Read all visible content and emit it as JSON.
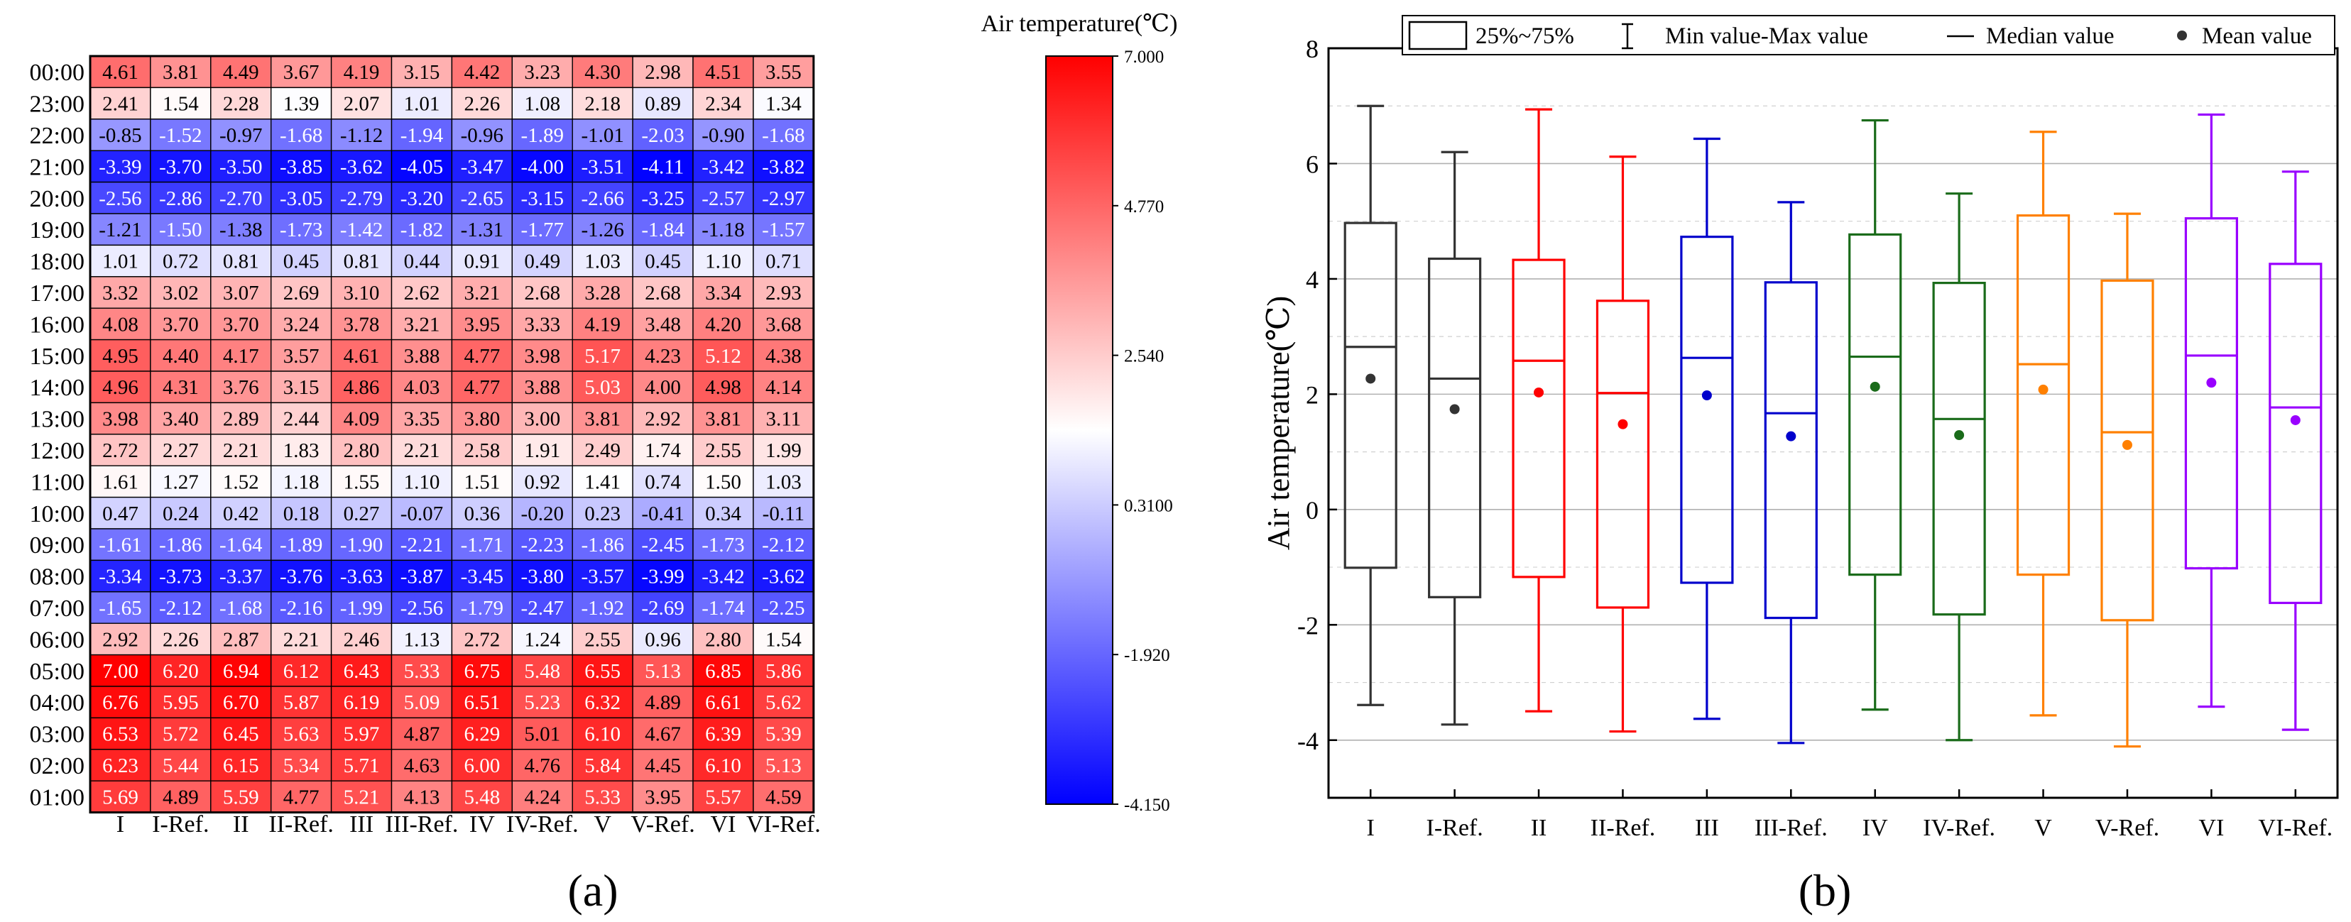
{
  "panel_labels": {
    "a": "(a)",
    "b": "(b)"
  },
  "chart_data": [
    {
      "type": "heatmap",
      "title": "Air temperature(℃)",
      "colorbar_label": "Air temperature(℃)",
      "colorbar_range": [
        -4.15,
        7.0
      ],
      "colorbar_ticks": [
        "7.000",
        "4.770",
        "2.540",
        "0.3100",
        "-1.920",
        "-4.150"
      ],
      "colorbar_tick_values": [
        7.0,
        4.77,
        2.54,
        0.31,
        -1.92,
        -4.15
      ],
      "colors": {
        "low": "#0000ff",
        "mid": "#ffffff",
        "high": "#ff0000",
        "grid": "#000000"
      },
      "categories": [
        "I",
        "I-Ref.",
        "II",
        "II-Ref.",
        "III",
        "III-Ref.",
        "IV",
        "IV-Ref.",
        "V",
        "V-Ref.",
        "VI",
        "VI-Ref."
      ],
      "rows": [
        "00:00",
        "23:00",
        "22:00",
        "21:00",
        "20:00",
        "19:00",
        "18:00",
        "17:00",
        "16:00",
        "15:00",
        "14:00",
        "13:00",
        "12:00",
        "11:00",
        "10:00",
        "09:00",
        "08:00",
        "07:00",
        "06:00",
        "05:00",
        "04:00",
        "03:00",
        "02:00",
        "01:00"
      ],
      "values": [
        [
          4.61,
          3.81,
          4.49,
          3.67,
          4.19,
          3.15,
          4.42,
          3.23,
          4.3,
          2.98,
          4.51,
          3.55
        ],
        [
          2.41,
          1.54,
          2.28,
          1.39,
          2.07,
          1.01,
          2.26,
          1.08,
          2.18,
          0.89,
          2.34,
          1.34
        ],
        [
          -0.85,
          -1.52,
          -0.97,
          -1.68,
          -1.12,
          -1.94,
          -0.96,
          -1.89,
          -1.01,
          -2.03,
          -0.9,
          -1.68
        ],
        [
          -3.39,
          -3.7,
          -3.5,
          -3.85,
          -3.62,
          -4.05,
          -3.47,
          -4.0,
          -3.51,
          -4.11,
          -3.42,
          -3.82
        ],
        [
          -2.56,
          -2.86,
          -2.7,
          -3.05,
          -2.79,
          -3.2,
          -2.65,
          -3.15,
          -2.66,
          -3.25,
          -2.57,
          -2.97
        ],
        [
          -1.21,
          -1.5,
          -1.38,
          -1.73,
          -1.42,
          -1.82,
          -1.31,
          -1.77,
          -1.26,
          -1.84,
          -1.18,
          -1.57
        ],
        [
          1.01,
          0.72,
          0.81,
          0.45,
          0.81,
          0.44,
          0.91,
          0.49,
          1.03,
          0.45,
          1.1,
          0.71
        ],
        [
          3.32,
          3.02,
          3.07,
          2.69,
          3.1,
          2.62,
          3.21,
          2.68,
          3.28,
          2.68,
          3.34,
          2.93
        ],
        [
          4.08,
          3.7,
          3.7,
          3.24,
          3.78,
          3.21,
          3.95,
          3.33,
          4.19,
          3.48,
          4.2,
          3.68
        ],
        [
          4.95,
          4.4,
          4.17,
          3.57,
          4.61,
          3.88,
          4.77,
          3.98,
          5.17,
          4.23,
          5.12,
          4.38
        ],
        [
          4.96,
          4.31,
          3.76,
          3.15,
          4.86,
          4.03,
          4.77,
          3.88,
          5.03,
          4.0,
          4.98,
          4.14
        ],
        [
          3.98,
          3.4,
          2.89,
          2.44,
          4.09,
          3.35,
          3.8,
          3.0,
          3.81,
          2.92,
          3.81,
          3.11
        ],
        [
          2.72,
          2.27,
          2.21,
          1.83,
          2.8,
          2.21,
          2.58,
          1.91,
          2.49,
          1.74,
          2.55,
          1.99
        ],
        [
          1.61,
          1.27,
          1.52,
          1.18,
          1.55,
          1.1,
          1.51,
          0.92,
          1.41,
          0.74,
          1.5,
          1.03
        ],
        [
          0.47,
          0.24,
          0.42,
          0.18,
          0.27,
          -0.07,
          0.36,
          -0.2,
          0.23,
          -0.41,
          0.34,
          -0.11
        ],
        [
          -1.61,
          -1.86,
          -1.64,
          -1.89,
          -1.9,
          -2.21,
          -1.71,
          -2.23,
          -1.86,
          -2.45,
          -1.73,
          -2.12
        ],
        [
          -3.34,
          -3.73,
          -3.37,
          -3.76,
          -3.63,
          -3.87,
          -3.45,
          -3.8,
          -3.57,
          -3.99,
          -3.42,
          -3.62
        ],
        [
          -1.65,
          -2.12,
          -1.68,
          -2.16,
          -1.99,
          -2.56,
          -1.79,
          -2.47,
          -1.92,
          -2.69,
          -1.74,
          -2.25
        ],
        [
          2.92,
          2.26,
          2.87,
          2.21,
          2.46,
          1.13,
          2.72,
          1.24,
          2.55,
          0.96,
          2.8,
          1.54
        ],
        [
          7.0,
          6.2,
          6.94,
          6.12,
          6.43,
          5.33,
          6.75,
          5.48,
          6.55,
          5.13,
          6.85,
          5.86
        ],
        [
          6.76,
          5.95,
          6.7,
          5.87,
          6.19,
          5.09,
          6.51,
          5.23,
          6.32,
          4.89,
          6.61,
          5.62
        ],
        [
          6.53,
          5.72,
          6.45,
          5.63,
          5.97,
          4.87,
          6.29,
          5.01,
          6.1,
          4.67,
          6.39,
          5.39
        ],
        [
          6.23,
          5.44,
          6.15,
          5.34,
          5.71,
          4.63,
          6.0,
          4.76,
          5.84,
          4.45,
          6.1,
          5.13
        ],
        [
          5.69,
          4.89,
          5.59,
          4.77,
          5.21,
          4.13,
          5.48,
          4.24,
          5.33,
          3.95,
          5.57,
          4.59
        ]
      ]
    },
    {
      "type": "box",
      "ylabel": "Air temperature(℃)",
      "xlabel": "",
      "ylim": [
        -5,
        8
      ],
      "yticks": [
        -4,
        -2,
        0,
        2,
        4,
        6,
        8
      ],
      "grid": true,
      "legend_position": "top",
      "legend": [
        "25%~75%",
        "Min value-Max value",
        "Median value",
        "Mean value"
      ],
      "categories": [
        "I",
        "I-Ref.",
        "II",
        "II-Ref.",
        "III",
        "III-Ref.",
        "IV",
        "IV-Ref.",
        "V",
        "V-Ref.",
        "VI",
        "VI-Ref."
      ],
      "colors": [
        "#333333",
        "#333333",
        "#ff0000",
        "#ff0000",
        "#0000cc",
        "#0000cc",
        "#1a6b1a",
        "#1a6b1a",
        "#ff8000",
        "#ff8000",
        "#9900ff",
        "#9900ff"
      ],
      "boxes": [
        {
          "min": -3.39,
          "q1": -1.01,
          "median": 2.82,
          "q3": 4.97,
          "max": 7.0,
          "mean": 2.27
        },
        {
          "min": -3.73,
          "q1": -1.52,
          "median": 2.27,
          "q3": 4.35,
          "max": 6.2,
          "mean": 1.74
        },
        {
          "min": -3.5,
          "q1": -1.17,
          "median": 2.58,
          "q3": 4.33,
          "max": 6.94,
          "mean": 2.03
        },
        {
          "min": -3.85,
          "q1": -1.7,
          "median": 2.02,
          "q3": 3.62,
          "max": 6.12,
          "mean": 1.48
        },
        {
          "min": -3.63,
          "q1": -1.27,
          "median": 2.63,
          "q3": 4.73,
          "max": 6.43,
          "mean": 1.98
        },
        {
          "min": -4.05,
          "q1": -1.88,
          "median": 1.67,
          "q3": 3.94,
          "max": 5.33,
          "mean": 1.27
        },
        {
          "min": -3.47,
          "q1": -1.13,
          "median": 2.65,
          "q3": 4.77,
          "max": 6.75,
          "mean": 2.13
        },
        {
          "min": -4.0,
          "q1": -1.82,
          "median": 1.57,
          "q3": 3.93,
          "max": 5.48,
          "mean": 1.29
        },
        {
          "min": -3.57,
          "q1": -1.13,
          "median": 2.52,
          "q3": 5.1,
          "max": 6.55,
          "mean": 2.08
        },
        {
          "min": -4.11,
          "q1": -1.92,
          "median": 1.34,
          "q3": 3.97,
          "max": 5.13,
          "mean": 1.12
        },
        {
          "min": -3.42,
          "q1": -1.02,
          "median": 2.67,
          "q3": 5.05,
          "max": 6.85,
          "mean": 2.2
        },
        {
          "min": -3.82,
          "q1": -1.62,
          "median": 1.77,
          "q3": 4.26,
          "max": 5.86,
          "mean": 1.55
        }
      ]
    }
  ]
}
